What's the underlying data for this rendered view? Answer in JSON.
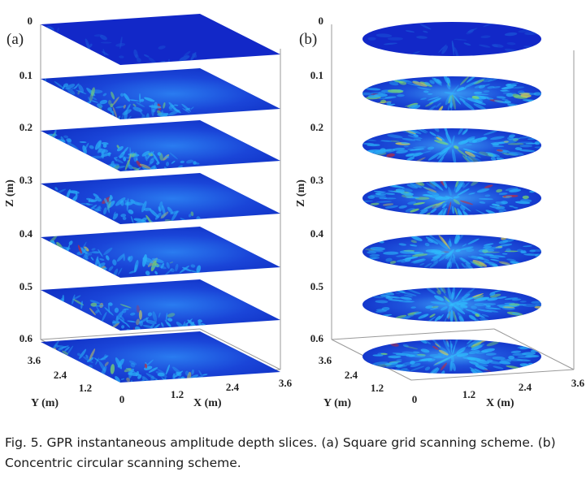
{
  "panels": [
    {
      "id": "a",
      "label": "(a)",
      "shape": "square",
      "z_ticks": [
        "0",
        "0.1",
        "0.2",
        "0.3",
        "0.4",
        "0.5",
        "0.6"
      ],
      "z_label": "Z (m)",
      "y_ticks": [
        "3.6",
        "2.4",
        "1.2"
      ],
      "y_label": "Y (m)",
      "x_ticks": [
        "0",
        "1.2",
        "2.4",
        "3.6"
      ],
      "x_label": "X (m)"
    },
    {
      "id": "b",
      "label": "(b)",
      "shape": "circle",
      "z_ticks": [
        "0",
        "0.1",
        "0.2",
        "0.3",
        "0.4",
        "0.5",
        "0.6"
      ],
      "z_label": "Z (m)",
      "y_ticks": [
        "3.6",
        "2.4",
        "1.2"
      ],
      "y_label": "Y (m)",
      "x_ticks": [
        "0",
        "1.2",
        "2.4",
        "3.6"
      ],
      "x_label": "X (m)"
    }
  ],
  "colors": {
    "slice_base": "#1228c8",
    "slice_cyan": "#2ec8ff",
    "slice_green": "#8ef05a",
    "slice_yellow": "#f4e63c",
    "slice_red": "#e0281e",
    "axis_line": "#9a9a9a"
  },
  "caption": {
    "line1": "Fig. 5. GPR instantaneous amplitude depth slices. (a) Square grid scanning scheme. (b)",
    "line2": "Concentric circular scanning scheme."
  }
}
